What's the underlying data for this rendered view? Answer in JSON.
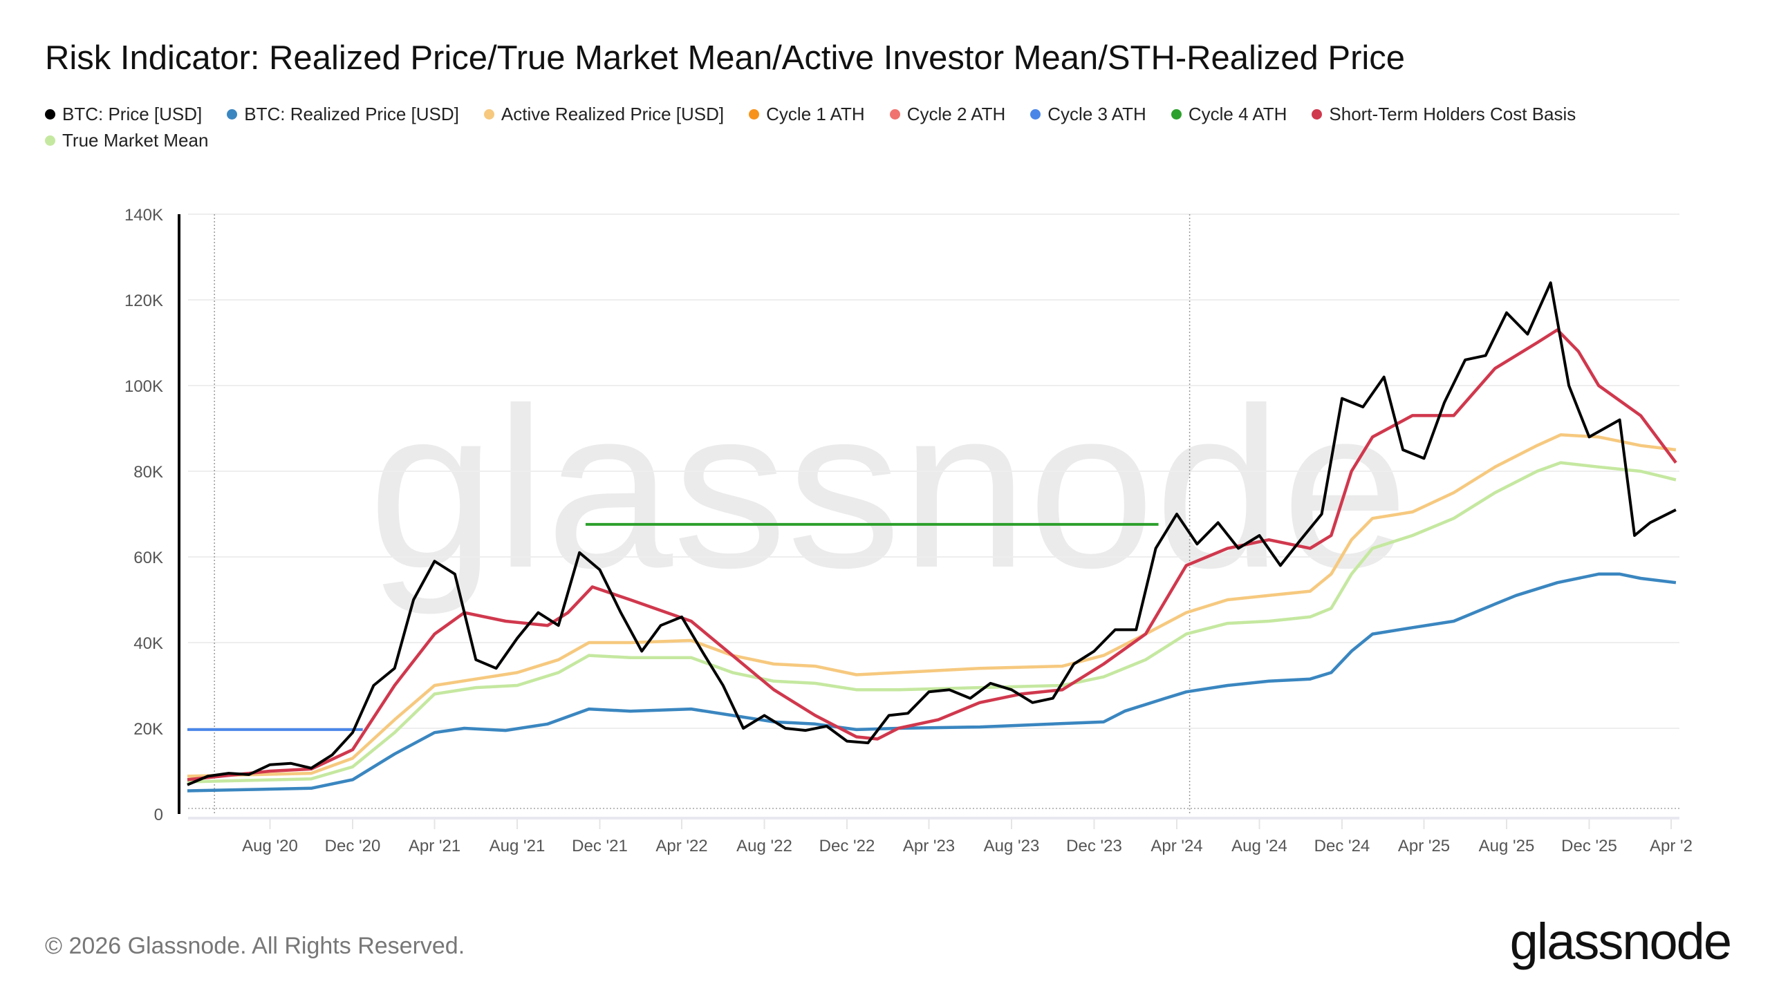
{
  "title": "Risk Indicator: Realized Price/True Market Mean/Active Investor Mean/STH-Realized Price",
  "footer": "© 2026 Glassnode. All Rights Reserved.",
  "logo": "glassnode",
  "watermark": "glassnode",
  "legend": [
    {
      "label": "BTC: Price [USD]",
      "color": "#000000"
    },
    {
      "label": "BTC: Realized Price [USD]",
      "color": "#3a86c0"
    },
    {
      "label": "Active Realized Price [USD]",
      "color": "#f6c97f"
    },
    {
      "label": "Cycle 1 ATH",
      "color": "#f7931a"
    },
    {
      "label": "Cycle 2 ATH",
      "color": "#f0736f"
    },
    {
      "label": "Cycle 3 ATH",
      "color": "#4a86e8"
    },
    {
      "label": "Cycle 4 ATH",
      "color": "#2ca02c"
    },
    {
      "label": "Short-Term Holders Cost Basis",
      "color": "#d0384d"
    },
    {
      "label": "True Market Mean",
      "color": "#c5e8a0"
    }
  ],
  "chart_data": {
    "type": "line",
    "title": "Risk Indicator: Realized Price/True Market Mean/Active Investor Mean/STH-Realized Price",
    "ylim": [
      0,
      140000
    ],
    "yticks": [
      {
        "value": 0,
        "label": "0"
      },
      {
        "value": 20000,
        "label": "20K"
      },
      {
        "value": 40000,
        "label": "40K"
      },
      {
        "value": 60000,
        "label": "60K"
      },
      {
        "value": 80000,
        "label": "80K"
      },
      {
        "value": 100000,
        "label": "100K"
      },
      {
        "value": 120000,
        "label": "120K"
      },
      {
        "value": 140000,
        "label": "140K"
      }
    ],
    "xlim": [
      "2020-04-01",
      "2026-04-08"
    ],
    "xticks": [
      {
        "date": "2020-08-01",
        "label": "Aug '20"
      },
      {
        "date": "2020-12-01",
        "label": "Dec '20"
      },
      {
        "date": "2021-04-01",
        "label": "Apr '21"
      },
      {
        "date": "2021-08-01",
        "label": "Aug '21"
      },
      {
        "date": "2021-12-01",
        "label": "Dec '21"
      },
      {
        "date": "2022-04-01",
        "label": "Apr '22"
      },
      {
        "date": "2022-08-01",
        "label": "Aug '22"
      },
      {
        "date": "2022-12-01",
        "label": "Dec '22"
      },
      {
        "date": "2023-04-01",
        "label": "Apr '23"
      },
      {
        "date": "2023-08-01",
        "label": "Aug '23"
      },
      {
        "date": "2023-12-01",
        "label": "Dec '23"
      },
      {
        "date": "2024-04-01",
        "label": "Apr '24"
      },
      {
        "date": "2024-08-01",
        "label": "Aug '24"
      },
      {
        "date": "2024-12-01",
        "label": "Dec '24"
      },
      {
        "date": "2025-04-01",
        "label": "Apr '25"
      },
      {
        "date": "2025-08-01",
        "label": "Aug '25"
      },
      {
        "date": "2025-12-01",
        "label": "Dec '25"
      },
      {
        "date": "2026-04-01",
        "label": "Apr '2"
      }
    ],
    "grid": true,
    "vertical_markers": [
      "2020-05-11",
      "2024-04-20"
    ],
    "series": [
      {
        "name": "Active Realized Price [USD]",
        "color": "#f6c97f",
        "points": [
          [
            "2020-04-01",
            8800
          ],
          [
            "2020-10-01",
            9500
          ],
          [
            "2020-12-01",
            13000
          ],
          [
            "2021-02-01",
            22000
          ],
          [
            "2021-04-01",
            30000
          ],
          [
            "2021-06-01",
            31500
          ],
          [
            "2021-08-01",
            33000
          ],
          [
            "2021-10-01",
            36000
          ],
          [
            "2021-11-15",
            40000
          ],
          [
            "2022-01-15",
            40000
          ],
          [
            "2022-04-15",
            40500
          ],
          [
            "2022-06-15",
            37000
          ],
          [
            "2022-08-15",
            35000
          ],
          [
            "2022-10-15",
            34500
          ],
          [
            "2022-12-15",
            32500
          ],
          [
            "2023-02-15",
            33000
          ],
          [
            "2023-06-15",
            34000
          ],
          [
            "2023-10-15",
            34500
          ],
          [
            "2023-12-15",
            37000
          ],
          [
            "2024-02-15",
            42000
          ],
          [
            "2024-04-15",
            47000
          ],
          [
            "2024-06-15",
            50000
          ],
          [
            "2024-08-15",
            51000
          ],
          [
            "2024-10-15",
            52000
          ],
          [
            "2024-11-15",
            56000
          ],
          [
            "2024-12-15",
            64000
          ],
          [
            "2025-01-15",
            69000
          ],
          [
            "2025-03-15",
            70500
          ],
          [
            "2025-05-15",
            75000
          ],
          [
            "2025-07-15",
            81000
          ],
          [
            "2025-09-15",
            86000
          ],
          [
            "2025-10-20",
            88500
          ],
          [
            "2025-12-15",
            88000
          ],
          [
            "2026-02-15",
            86000
          ],
          [
            "2026-04-08",
            85000
          ]
        ]
      },
      {
        "name": "True Market Mean",
        "color": "#c5e8a0",
        "points": [
          [
            "2020-04-01",
            7500
          ],
          [
            "2020-10-01",
            8200
          ],
          [
            "2020-12-01",
            11000
          ],
          [
            "2021-02-01",
            19000
          ],
          [
            "2021-04-01",
            28000
          ],
          [
            "2021-06-01",
            29500
          ],
          [
            "2021-08-01",
            30000
          ],
          [
            "2021-10-01",
            33000
          ],
          [
            "2021-11-15",
            37000
          ],
          [
            "2022-01-15",
            36500
          ],
          [
            "2022-04-15",
            36500
          ],
          [
            "2022-06-15",
            33000
          ],
          [
            "2022-08-15",
            31000
          ],
          [
            "2022-10-15",
            30500
          ],
          [
            "2022-12-15",
            29000
          ],
          [
            "2023-02-15",
            29000
          ],
          [
            "2023-06-15",
            29500
          ],
          [
            "2023-10-15",
            30000
          ],
          [
            "2023-12-15",
            32000
          ],
          [
            "2024-02-15",
            36000
          ],
          [
            "2024-04-15",
            42000
          ],
          [
            "2024-06-15",
            44500
          ],
          [
            "2024-08-15",
            45000
          ],
          [
            "2024-10-15",
            46000
          ],
          [
            "2024-11-15",
            48000
          ],
          [
            "2024-12-15",
            56000
          ],
          [
            "2025-01-15",
            62000
          ],
          [
            "2025-03-15",
            65000
          ],
          [
            "2025-05-15",
            69000
          ],
          [
            "2025-07-15",
            75000
          ],
          [
            "2025-09-15",
            80000
          ],
          [
            "2025-10-20",
            82000
          ],
          [
            "2025-12-15",
            81000
          ],
          [
            "2026-02-15",
            80000
          ],
          [
            "2026-04-08",
            78000
          ]
        ]
      },
      {
        "name": "BTC: Realized Price [USD]",
        "color": "#3a86c0",
        "points": [
          [
            "2020-04-01",
            5400
          ],
          [
            "2020-10-01",
            6000
          ],
          [
            "2020-12-01",
            8000
          ],
          [
            "2021-02-01",
            14000
          ],
          [
            "2021-04-01",
            19000
          ],
          [
            "2021-05-15",
            20000
          ],
          [
            "2021-07-15",
            19500
          ],
          [
            "2021-09-15",
            21000
          ],
          [
            "2021-11-15",
            24500
          ],
          [
            "2022-01-15",
            24000
          ],
          [
            "2022-04-15",
            24500
          ],
          [
            "2022-06-15",
            23000
          ],
          [
            "2022-08-15",
            21500
          ],
          [
            "2022-10-15",
            21000
          ],
          [
            "2022-12-15",
            19700
          ],
          [
            "2023-02-15",
            20000
          ],
          [
            "2023-06-15",
            20300
          ],
          [
            "2023-12-15",
            21500
          ],
          [
            "2024-01-15",
            24000
          ],
          [
            "2024-03-15",
            27000
          ],
          [
            "2024-04-15",
            28500
          ],
          [
            "2024-06-15",
            30000
          ],
          [
            "2024-08-15",
            31000
          ],
          [
            "2024-10-15",
            31500
          ],
          [
            "2024-11-15",
            33000
          ],
          [
            "2024-12-15",
            38000
          ],
          [
            "2025-01-15",
            42000
          ],
          [
            "2025-03-15",
            43500
          ],
          [
            "2025-05-15",
            45000
          ],
          [
            "2025-07-15",
            49000
          ],
          [
            "2025-08-15",
            51000
          ],
          [
            "2025-10-15",
            54000
          ],
          [
            "2025-12-15",
            56000
          ],
          [
            "2026-01-15",
            56000
          ],
          [
            "2026-02-15",
            55000
          ],
          [
            "2026-04-08",
            54000
          ]
        ]
      },
      {
        "name": "Short-Term Holders Cost Basis",
        "color": "#d0384d",
        "points": [
          [
            "2020-04-01",
            8000
          ],
          [
            "2020-08-01",
            10000
          ],
          [
            "2020-10-01",
            10500
          ],
          [
            "2020-12-01",
            15000
          ],
          [
            "2021-02-01",
            30000
          ],
          [
            "2021-04-01",
            42000
          ],
          [
            "2021-05-15",
            47000
          ],
          [
            "2021-07-15",
            45000
          ],
          [
            "2021-09-15",
            44000
          ],
          [
            "2021-10-15",
            47000
          ],
          [
            "2021-11-20",
            53000
          ],
          [
            "2022-01-15",
            50000
          ],
          [
            "2022-04-15",
            45000
          ],
          [
            "2022-06-15",
            37000
          ],
          [
            "2022-08-15",
            29000
          ],
          [
            "2022-10-15",
            23000
          ],
          [
            "2022-12-15",
            18000
          ],
          [
            "2023-01-15",
            17500
          ],
          [
            "2023-02-15",
            20000
          ],
          [
            "2023-04-15",
            22000
          ],
          [
            "2023-06-15",
            26000
          ],
          [
            "2023-08-15",
            28000
          ],
          [
            "2023-10-15",
            29000
          ],
          [
            "2023-12-15",
            35000
          ],
          [
            "2024-02-15",
            42000
          ],
          [
            "2024-04-15",
            58000
          ],
          [
            "2024-06-15",
            62000
          ],
          [
            "2024-08-15",
            64000
          ],
          [
            "2024-10-15",
            62000
          ],
          [
            "2024-11-15",
            65000
          ],
          [
            "2024-12-15",
            80000
          ],
          [
            "2025-01-15",
            88000
          ],
          [
            "2025-03-15",
            93000
          ],
          [
            "2025-05-15",
            93000
          ],
          [
            "2025-07-15",
            104000
          ],
          [
            "2025-09-15",
            110000
          ],
          [
            "2025-10-15",
            113000
          ],
          [
            "2025-11-15",
            108000
          ],
          [
            "2025-12-15",
            100000
          ],
          [
            "2026-02-15",
            93000
          ],
          [
            "2026-04-08",
            82000
          ]
        ]
      },
      {
        "name": "BTC: Price [USD]",
        "color": "#000000",
        "points": [
          [
            "2020-04-01",
            6800
          ],
          [
            "2020-05-01",
            8800
          ],
          [
            "2020-06-01",
            9500
          ],
          [
            "2020-07-01",
            9200
          ],
          [
            "2020-08-01",
            11500
          ],
          [
            "2020-09-01",
            11800
          ],
          [
            "2020-10-01",
            10700
          ],
          [
            "2020-11-01",
            13800
          ],
          [
            "2020-12-01",
            19000
          ],
          [
            "2021-01-01",
            30000
          ],
          [
            "2021-02-01",
            34000
          ],
          [
            "2021-03-01",
            50000
          ],
          [
            "2021-04-01",
            59000
          ],
          [
            "2021-05-01",
            56000
          ],
          [
            "2021-06-01",
            36000
          ],
          [
            "2021-07-01",
            34000
          ],
          [
            "2021-08-01",
            41000
          ],
          [
            "2021-09-01",
            47000
          ],
          [
            "2021-10-01",
            44000
          ],
          [
            "2021-11-01",
            61000
          ],
          [
            "2021-12-01",
            57000
          ],
          [
            "2022-01-01",
            47000
          ],
          [
            "2022-02-01",
            38000
          ],
          [
            "2022-03-01",
            44000
          ],
          [
            "2022-04-01",
            46000
          ],
          [
            "2022-05-01",
            38000
          ],
          [
            "2022-06-01",
            30000
          ],
          [
            "2022-07-01",
            20000
          ],
          [
            "2022-08-01",
            23000
          ],
          [
            "2022-09-01",
            20000
          ],
          [
            "2022-10-01",
            19500
          ],
          [
            "2022-11-01",
            20500
          ],
          [
            "2022-12-01",
            17000
          ],
          [
            "2023-01-01",
            16600
          ],
          [
            "2023-02-01",
            23000
          ],
          [
            "2023-03-01",
            23500
          ],
          [
            "2023-04-01",
            28500
          ],
          [
            "2023-05-01",
            29000
          ],
          [
            "2023-06-01",
            27000
          ],
          [
            "2023-07-01",
            30500
          ],
          [
            "2023-08-01",
            29000
          ],
          [
            "2023-09-01",
            26000
          ],
          [
            "2023-10-01",
            27000
          ],
          [
            "2023-11-01",
            35000
          ],
          [
            "2023-12-01",
            38000
          ],
          [
            "2024-01-01",
            43000
          ],
          [
            "2024-02-01",
            43000
          ],
          [
            "2024-03-01",
            62000
          ],
          [
            "2024-04-01",
            70000
          ],
          [
            "2024-05-01",
            63000
          ],
          [
            "2024-06-01",
            68000
          ],
          [
            "2024-07-01",
            62000
          ],
          [
            "2024-08-01",
            65000
          ],
          [
            "2024-09-01",
            58000
          ],
          [
            "2024-10-01",
            64000
          ],
          [
            "2024-11-01",
            70000
          ],
          [
            "2024-12-01",
            97000
          ],
          [
            "2025-01-01",
            95000
          ],
          [
            "2025-02-01",
            102000
          ],
          [
            "2025-03-01",
            85000
          ],
          [
            "2025-04-01",
            83000
          ],
          [
            "2025-05-01",
            96000
          ],
          [
            "2025-06-01",
            106000
          ],
          [
            "2025-07-01",
            107000
          ],
          [
            "2025-08-01",
            117000
          ],
          [
            "2025-09-01",
            112000
          ],
          [
            "2025-10-05",
            124000
          ],
          [
            "2025-11-01",
            100000
          ],
          [
            "2025-12-01",
            88000
          ],
          [
            "2026-01-15",
            92000
          ],
          [
            "2026-02-06",
            65000
          ],
          [
            "2026-03-01",
            68000
          ],
          [
            "2026-04-08",
            71000
          ]
        ]
      }
    ],
    "levels": [
      {
        "name": "Cycle 3 ATH",
        "color": "#4a86e8",
        "value": 19700,
        "from": "2020-04-01",
        "to": "2020-12-16"
      },
      {
        "name": "Cycle 4 ATH",
        "color": "#2ca02c",
        "value": 67600,
        "from": "2021-11-10",
        "to": "2024-03-05"
      }
    ]
  }
}
